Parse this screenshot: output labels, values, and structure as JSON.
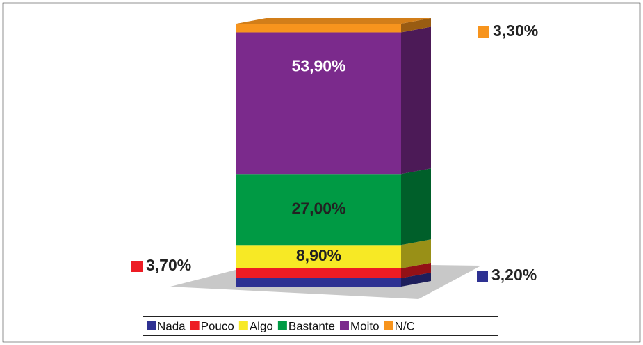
{
  "chart_data": {
    "type": "bar",
    "stacked": true,
    "ylim": [
      0,
      100
    ],
    "series": [
      {
        "name": "Nada",
        "color": "#2e3192",
        "values": [
          3.2
        ],
        "value_labels": [
          "3,20%"
        ]
      },
      {
        "name": "Pouco",
        "color": "#ed1c24",
        "values": [
          3.7
        ],
        "value_labels": [
          "3,70%"
        ]
      },
      {
        "name": "Algo",
        "color": "#f7e925",
        "values": [
          8.9
        ],
        "value_labels": [
          "8,90%"
        ]
      },
      {
        "name": "Bastante",
        "color": "#009a44",
        "values": [
          27.0
        ],
        "value_labels": [
          "27,00%"
        ]
      },
      {
        "name": "Moito",
        "color": "#7b2a8c",
        "values": [
          53.9
        ],
        "value_labels": [
          "53,90%"
        ]
      },
      {
        "name": "N/C",
        "color": "#f7941d",
        "values": [
          3.3
        ],
        "value_labels": [
          "3,30%"
        ]
      }
    ],
    "legend": "bottom"
  }
}
